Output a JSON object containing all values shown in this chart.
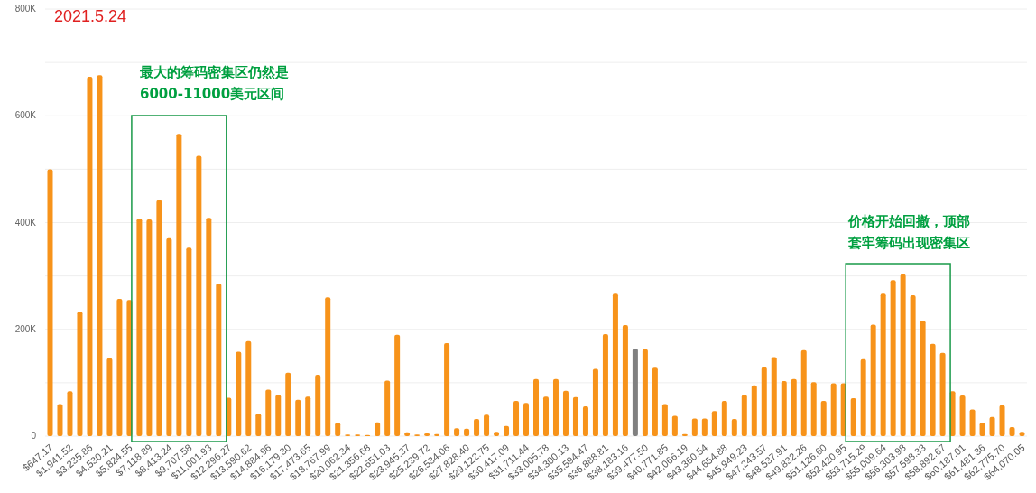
{
  "chart_data": {
    "type": "bar",
    "categories": [
      "$647.17",
      null,
      "$1,941.52",
      null,
      "$3,235.86",
      null,
      "$4,530.21",
      null,
      "$5,824.55",
      null,
      "$7,118.89",
      null,
      "$8,413.24",
      null,
      "$9,707.58",
      null,
      "$11,001.93",
      null,
      "$12,296.27",
      null,
      "$13,590.62",
      null,
      "$14,884.96",
      null,
      "$16,179.30",
      null,
      "$17,473.65",
      null,
      "$18,767.99",
      null,
      "$20,062.34",
      null,
      "$21,356.68",
      null,
      "$22,651.03",
      null,
      "$23,945.37",
      null,
      "$25,239.72",
      null,
      "$26,534.06",
      null,
      "$27,828.40",
      null,
      "$29,122.75",
      null,
      "$30,417.09",
      null,
      "$31,711.44",
      null,
      "$33,005.78",
      null,
      "$34,300.13",
      null,
      "$35,594.47",
      null,
      "$36,888.81",
      null,
      "$38,183.16",
      null,
      "$39,477.50",
      null,
      "$40,771.85",
      null,
      "$42,066.19",
      null,
      "$43,360.54",
      null,
      "$44,654.88",
      null,
      "$45,949.23",
      null,
      "$47,243.57",
      null,
      "$48,537.91",
      null,
      "$49,832.26",
      null,
      "$51,126.60",
      null,
      "$52,420.95",
      null,
      "$53,715.29",
      null,
      "$55,009.64",
      null,
      "$56,303.98",
      null,
      "$57,598.33",
      null,
      "$58,892.67",
      null,
      "$60,187.01",
      null,
      "$61,481.36",
      null,
      "$62,775.70",
      null,
      "$64,070.05"
    ],
    "values": [
      500000,
      60000,
      84000,
      233000,
      673000,
      676000,
      146000,
      257000,
      255000,
      407000,
      406000,
      442000,
      371000,
      566000,
      353000,
      525000,
      409000,
      286000,
      72000,
      158000,
      178000,
      42000,
      87000,
      77000,
      119000,
      68000,
      74000,
      115000,
      260000,
      25000,
      3000,
      3000,
      2000,
      26000,
      104000,
      190000,
      7000,
      3000,
      5000,
      4000,
      174000,
      15000,
      14000,
      32000,
      40000,
      8000,
      19000,
      66000,
      62000,
      107000,
      74000,
      107000,
      85000,
      73000,
      56000,
      126000,
      191000,
      267000,
      208000,
      164000,
      163000,
      128000,
      60000,
      38000,
      4000,
      33000,
      33000,
      47000,
      66000,
      32000,
      77000,
      95000,
      129000,
      148000,
      103000,
      107000,
      161000,
      101000,
      66000,
      99000,
      99000,
      71000,
      144000,
      209000,
      267000,
      292000,
      303000,
      264000,
      216000,
      173000,
      156000,
      84000,
      76000,
      50000,
      25000,
      36000,
      58000,
      17000,
      8000
    ],
    "colors": [
      "#f7931a",
      "#f7931a",
      "#f7931a",
      "#f7931a",
      "#f7931a",
      "#f7931a",
      "#f7931a",
      "#f7931a",
      "#f7931a",
      "#f7931a",
      "#f7931a",
      "#f7931a",
      "#f7931a",
      "#f7931a",
      "#f7931a",
      "#f7931a",
      "#f7931a",
      "#f7931a",
      "#f7931a",
      "#f7931a",
      "#f7931a",
      "#f7931a",
      "#f7931a",
      "#f7931a",
      "#f7931a",
      "#f7931a",
      "#f7931a",
      "#f7931a",
      "#f7931a",
      "#f7931a",
      "#f7931a",
      "#f7931a",
      "#f7931a",
      "#f7931a",
      "#f7931a",
      "#f7931a",
      "#f7931a",
      "#f7931a",
      "#f7931a",
      "#f7931a",
      "#f7931a",
      "#f7931a",
      "#f7931a",
      "#f7931a",
      "#f7931a",
      "#f7931a",
      "#f7931a",
      "#f7931a",
      "#f7931a",
      "#f7931a",
      "#f7931a",
      "#f7931a",
      "#f7931a",
      "#f7931a",
      "#f7931a",
      "#f7931a",
      "#f7931a",
      "#f7931a",
      "#f7931a",
      "#808080",
      "#f7931a",
      "#f7931a",
      "#f7931a",
      "#f7931a",
      "#f7931a",
      "#f7931a",
      "#f7931a",
      "#f7931a",
      "#f7931a",
      "#f7931a",
      "#f7931a",
      "#f7931a",
      "#f7931a",
      "#f7931a",
      "#f7931a",
      "#f7931a",
      "#f7931a",
      "#f7931a",
      "#f7931a",
      "#f7931a",
      "#f7931a",
      "#f7931a",
      "#f7931a",
      "#f7931a",
      "#f7931a",
      "#f7931a",
      "#f7931a",
      "#f7931a",
      "#f7931a",
      "#f7931a",
      "#f7931a",
      "#f7931a",
      "#f7931a",
      "#f7931a",
      "#f7931a",
      "#f7931a",
      "#f7931a",
      "#f7931a",
      "#f7931a"
    ],
    "ylim": [
      0,
      800000
    ],
    "yticks": [
      0,
      {
        "value": 100000,
        "label": null
      },
      {
        "value": 200000,
        "label": "200K"
      },
      {
        "value": 300000,
        "label": null
      },
      {
        "value": 400000,
        "label": "400K"
      },
      {
        "value": 500000,
        "label": null
      },
      {
        "value": 600000,
        "label": "600K"
      },
      {
        "value": 700000,
        "label": null
      },
      {
        "value": 800000,
        "label": "800K"
      }
    ],
    "grid": "y",
    "annotations": [
      "2021.5.24",
      "最大的筹码密集区仍然是6000-11000美元区间",
      "价格开始回撤，顶部套牢筹码出现密集区"
    ]
  }
}
